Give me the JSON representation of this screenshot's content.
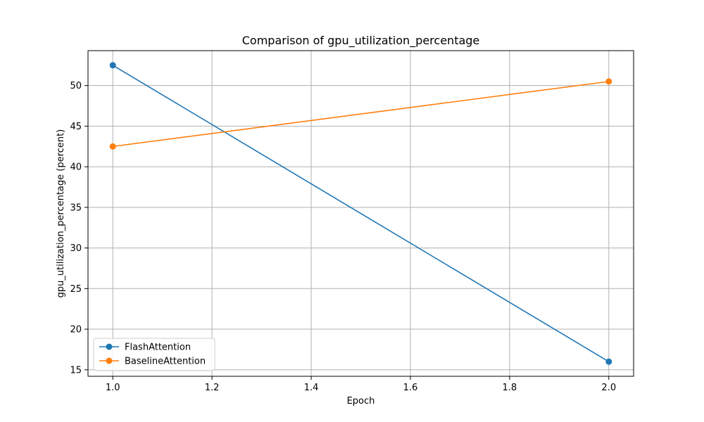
{
  "chart_data": {
    "type": "line",
    "title": "Comparison of gpu_utilization_percentage",
    "xlabel": "Epoch",
    "ylabel": "gpu_utilization_percentage (percent)",
    "xlim": [
      0.95,
      2.05
    ],
    "ylim": [
      14.2,
      54.3
    ],
    "x_ticks": [
      1.0,
      1.2,
      1.4,
      1.6,
      1.8,
      2.0
    ],
    "x_tick_labels": [
      "1.0",
      "1.2",
      "1.4",
      "1.6",
      "1.8",
      "2.0"
    ],
    "y_ticks": [
      15,
      20,
      25,
      30,
      35,
      40,
      45,
      50
    ],
    "y_tick_labels": [
      "15",
      "20",
      "25",
      "30",
      "35",
      "40",
      "45",
      "50"
    ],
    "grid": true,
    "legend_position": "lower-left",
    "series": [
      {
        "name": "FlashAttention",
        "color": "#1f77b4",
        "x": [
          1.0,
          2.0
        ],
        "y": [
          52.5,
          16.0
        ]
      },
      {
        "name": "BaselineAttention",
        "color": "#ff7f0e",
        "x": [
          1.0,
          2.0
        ],
        "y": [
          42.5,
          50.5
        ]
      }
    ]
  }
}
